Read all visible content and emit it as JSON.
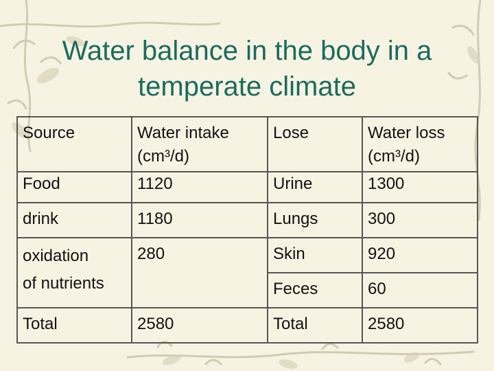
{
  "slide": {
    "title_line1": "Water balance in the body in a",
    "title_line2": "temperate climate"
  },
  "table": {
    "header": {
      "source": "Source",
      "intake": [
        "Water intake",
        "(cm³/d)"
      ],
      "lose": "Lose",
      "loss": [
        "Water loss",
        "(cm³/d)"
      ]
    },
    "rows": [
      {
        "source": "Food",
        "intake": "1120",
        "lose": "Urine",
        "loss": "1300"
      },
      {
        "source": "drink",
        "intake": "1180",
        "lose": "Lungs",
        "loss": "300"
      },
      {
        "source": [
          "oxidation",
          "of nutrients"
        ],
        "intake": "280",
        "lose": "Skin",
        "loss": "920"
      },
      {
        "lose": "Feces",
        "loss": "60"
      },
      {
        "source": "Total",
        "intake": "2580",
        "lose": "Total",
        "loss": "2580"
      }
    ]
  },
  "colors": {
    "title": "#1a6b5e",
    "background": "#f7f3e3",
    "border": "#555555"
  }
}
